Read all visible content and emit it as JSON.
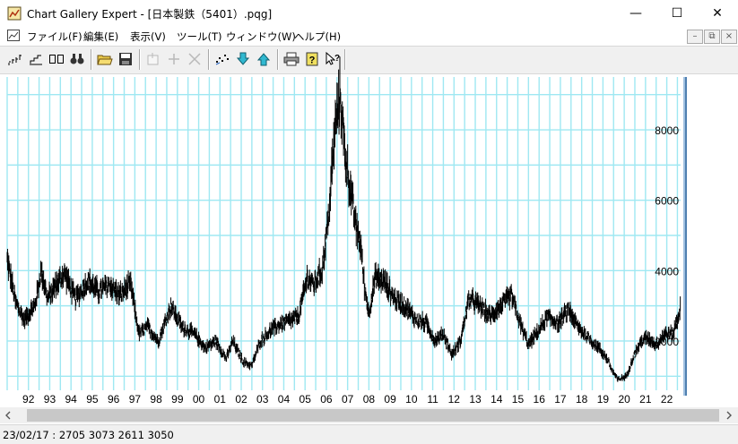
{
  "window": {
    "title": "Chart Gallery Expert - [日本製鉄（5401）.pqg]",
    "minimize_glyph": "—",
    "maximize_glyph": "☐",
    "close_glyph": "✕"
  },
  "menu": {
    "items": [
      "ファイル(F)",
      "編集(E)",
      "表示(V)",
      "ツール(T)",
      "ウィンドウ(W)",
      "ヘルプ(H)"
    ]
  },
  "mdi_controls": [
    "–",
    "⧉",
    "×"
  ],
  "toolbar": {
    "icons": [
      "candlestick-chart-icon",
      "line-chart-icon",
      "compare-chart-icon",
      "find-icon",
      "open-folder-icon",
      "save-icon",
      "properties-icon",
      "add-icon",
      "delete-icon",
      "scatter-icon",
      "download-icon",
      "upload-icon",
      "print-icon",
      "help-icon",
      "context-help-icon"
    ],
    "disabled": [
      "properties-icon",
      "add-icon",
      "delete-icon"
    ]
  },
  "status": {
    "text": "23/02/17 : 2705 3073 2611 3050"
  },
  "colors": {
    "gridline": "#9fe8f2",
    "bars": "#000000",
    "axis": "#a0c0e0"
  },
  "chart_data": {
    "type": "bar",
    "subtype": "high-low price bars (weekly)",
    "ylim": [
      600,
      9400
    ],
    "yticks": [
      2000,
      4000,
      6000,
      8000
    ],
    "xticks": [
      "92",
      "93",
      "94",
      "95",
      "96",
      "97",
      "98",
      "99",
      "00",
      "01",
      "02",
      "03",
      "04",
      "05",
      "06",
      "07",
      "08",
      "09",
      "10",
      "11",
      "12",
      "13",
      "14",
      "15",
      "16",
      "17",
      "18",
      "19",
      "20",
      "21",
      "22"
    ],
    "x_start_year": 1991.5,
    "x_end_year": 2023.15,
    "grid": true,
    "y_axis_side": "right",
    "price_path": [
      [
        1991.5,
        4300
      ],
      [
        1991.9,
        3100
      ],
      [
        1992.3,
        2600
      ],
      [
        1992.8,
        3000
      ],
      [
        1993.1,
        4000
      ],
      [
        1993.4,
        3200
      ],
      [
        1993.8,
        3600
      ],
      [
        1994.2,
        3900
      ],
      [
        1994.7,
        3200
      ],
      [
        1995.3,
        3700
      ],
      [
        1995.8,
        3400
      ],
      [
        1996.3,
        3600
      ],
      [
        1996.8,
        3300
      ],
      [
        1997.3,
        3600
      ],
      [
        1997.7,
        2200
      ],
      [
        1998.1,
        2400
      ],
      [
        1998.6,
        2000
      ],
      [
        1999.2,
        3000
      ],
      [
        1999.7,
        2400
      ],
      [
        2000.3,
        2200
      ],
      [
        2000.8,
        1800
      ],
      [
        2001.3,
        2000
      ],
      [
        2001.8,
        1500
      ],
      [
        2002.1,
        2000
      ],
      [
        2002.6,
        1400
      ],
      [
        2003.0,
        1300
      ],
      [
        2003.4,
        2000
      ],
      [
        2003.9,
        2300
      ],
      [
        2004.4,
        2500
      ],
      [
        2004.9,
        2600
      ],
      [
        2005.2,
        2700
      ],
      [
        2005.6,
        3800
      ],
      [
        2005.9,
        3600
      ],
      [
        2006.3,
        4000
      ],
      [
        2006.6,
        5500
      ],
      [
        2006.9,
        8000
      ],
      [
        2007.15,
        9000
      ],
      [
        2007.4,
        7200
      ],
      [
        2007.7,
        6000
      ],
      [
        2007.9,
        5200
      ],
      [
        2008.1,
        4800
      ],
      [
        2008.3,
        3500
      ],
      [
        2008.5,
        2800
      ],
      [
        2008.8,
        3800
      ],
      [
        2009.2,
        3700
      ],
      [
        2009.7,
        3200
      ],
      [
        2010.2,
        3000
      ],
      [
        2010.7,
        2600
      ],
      [
        2011.2,
        2500
      ],
      [
        2011.6,
        2000
      ],
      [
        2012.0,
        2200
      ],
      [
        2012.4,
        1600
      ],
      [
        2012.8,
        2000
      ],
      [
        2013.2,
        3200
      ],
      [
        2013.7,
        3000
      ],
      [
        2014.2,
        2700
      ],
      [
        2014.7,
        3000
      ],
      [
        2015.2,
        3300
      ],
      [
        2015.6,
        2500
      ],
      [
        2016.0,
        1900
      ],
      [
        2016.5,
        2300
      ],
      [
        2016.9,
        2700
      ],
      [
        2017.4,
        2500
      ],
      [
        2017.9,
        2900
      ],
      [
        2018.3,
        2400
      ],
      [
        2018.8,
        2100
      ],
      [
        2019.3,
        1800
      ],
      [
        2019.7,
        1500
      ],
      [
        2019.9,
        1200
      ],
      [
        2020.2,
        900
      ],
      [
        2020.6,
        1000
      ],
      [
        2020.9,
        1500
      ],
      [
        2021.3,
        2000
      ],
      [
        2021.6,
        2100
      ],
      [
        2022.0,
        1900
      ],
      [
        2022.4,
        2200
      ],
      [
        2022.8,
        2200
      ],
      [
        2023.15,
        2950
      ]
    ]
  }
}
